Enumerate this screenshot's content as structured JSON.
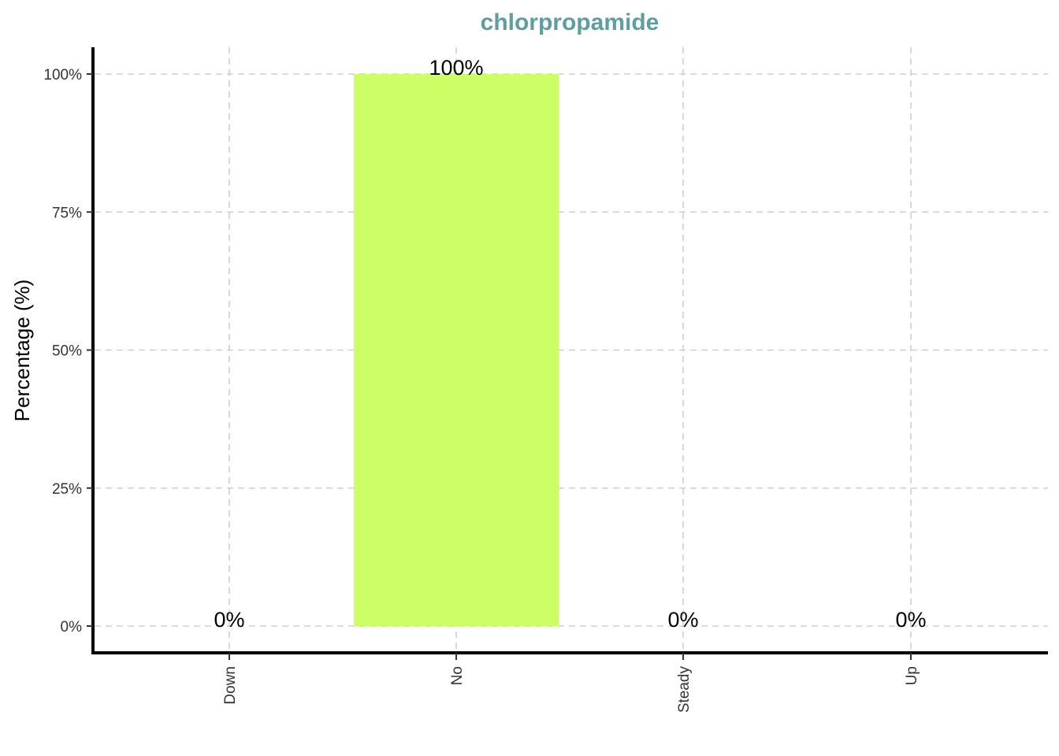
{
  "chart_data": {
    "type": "bar",
    "title": "chlorpropamide",
    "xlabel": "",
    "ylabel": "Percentage (%)",
    "categories": [
      "Down",
      "No",
      "Steady",
      "Up"
    ],
    "values": [
      0,
      100,
      0,
      0
    ],
    "data_labels": [
      "0%",
      "100%",
      "0%",
      "0%"
    ],
    "ylim": [
      -5,
      105
    ],
    "yticks": [
      0,
      25,
      50,
      75,
      100
    ],
    "ytick_labels": [
      "0%",
      "25%",
      "50%",
      "75%",
      "100%"
    ],
    "grid": true,
    "legend": "none",
    "colors": {
      "title": "#5F9EA0",
      "bar": "#CCFF66",
      "grid": "#cfcfcf",
      "axis": "#000000"
    }
  }
}
